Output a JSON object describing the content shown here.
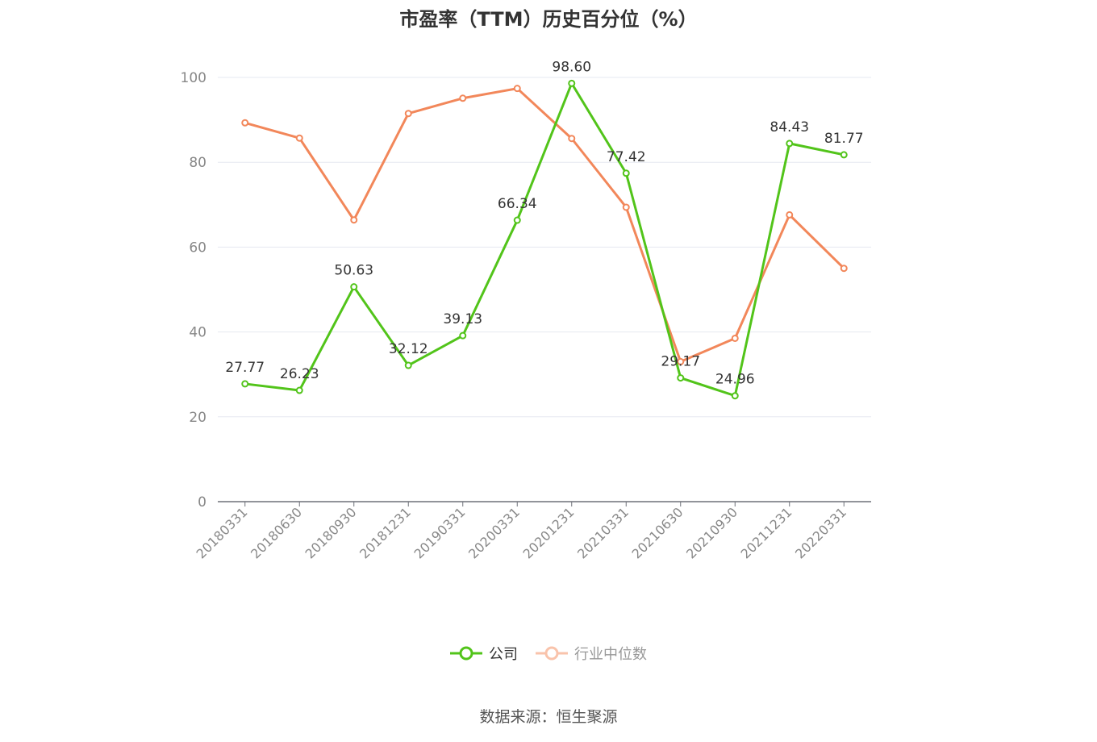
{
  "title": "市盈率（TTM）历史百分位（%）",
  "source": "数据来源：恒生聚源",
  "colors": {
    "company": "#52c41a",
    "industry": "#f2875a",
    "grid": "#e6e8f0",
    "axis": "#6e7079"
  },
  "chart_data": {
    "type": "line",
    "title": "市盈率（TTM）历史百分位（%）",
    "categories": [
      "20180331",
      "20180630",
      "20180930",
      "20181231",
      "20190331",
      "20200331",
      "20201231",
      "20210331",
      "20210630",
      "20210930",
      "20211231",
      "20220331"
    ],
    "ylim": [
      0,
      100
    ],
    "yticks": [
      0,
      20,
      40,
      60,
      80,
      100
    ],
    "grid": true,
    "legend_position": "bottom",
    "series": [
      {
        "name": "公司",
        "color": "#52c41a",
        "show_labels": true,
        "values": [
          27.77,
          26.23,
          50.63,
          32.12,
          39.13,
          66.34,
          98.6,
          77.42,
          29.17,
          24.96,
          84.43,
          81.77
        ]
      },
      {
        "name": "行业中位数",
        "color": "#f2875a",
        "show_labels": false,
        "values": [
          89.3,
          85.7,
          66.4,
          91.5,
          95.1,
          97.4,
          85.6,
          69.4,
          33.0,
          38.5,
          67.6,
          55.0
        ]
      }
    ]
  }
}
